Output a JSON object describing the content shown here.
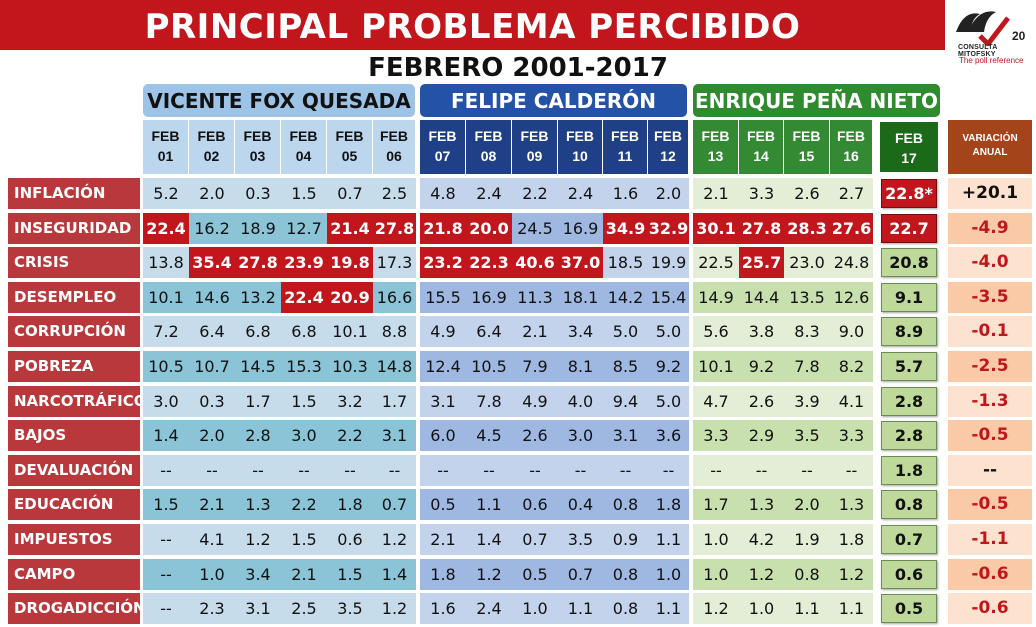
{
  "title": "PRINCIPAL PROBLEMA PERCIBIDO",
  "subtitle": "FEBRERO 2001-2017",
  "logo": {
    "brand": "CONSULTA MITOFSKY",
    "tagline": "The poll reference",
    "badge": "20"
  },
  "periods": [
    {
      "name": "VICENTE FOX QUESADA"
    },
    {
      "name": "FELIPE CALDERÓN"
    },
    {
      "name": "ENRIQUE PEÑA NIETO"
    }
  ],
  "variation_header": [
    "VARIACIÓN",
    "ANUAL"
  ],
  "colors": {
    "title_red": "#c0161c",
    "fox_blue": "#9dc3e6",
    "calderon_blue": "#2452a6",
    "epn_green": "#2e8b2e",
    "highlight_red": "#c0161c",
    "variation_header": "#a3441a",
    "variation_negative": "#c0161c"
  },
  "chart_data": {
    "type": "table",
    "title": "PRINCIPAL PROBLEMA PERCIBIDO",
    "subtitle": "FEBRERO 2001-2017",
    "columns": [
      {
        "month": "FEB",
        "year": "01",
        "period": 0
      },
      {
        "month": "FEB",
        "year": "02",
        "period": 0
      },
      {
        "month": "FEB",
        "year": "03",
        "period": 0
      },
      {
        "month": "FEB",
        "year": "04",
        "period": 0
      },
      {
        "month": "FEB",
        "year": "05",
        "period": 0
      },
      {
        "month": "FEB",
        "year": "06",
        "period": 0
      },
      {
        "month": "FEB",
        "year": "07",
        "period": 1
      },
      {
        "month": "FEB",
        "year": "08",
        "period": 1
      },
      {
        "month": "FEB",
        "year": "09",
        "period": 1
      },
      {
        "month": "FEB",
        "year": "10",
        "period": 1
      },
      {
        "month": "FEB",
        "year": "11",
        "period": 1
      },
      {
        "month": "FEB",
        "year": "12",
        "period": 1
      },
      {
        "month": "FEB",
        "year": "13",
        "period": 2
      },
      {
        "month": "FEB",
        "year": "14",
        "period": 2
      },
      {
        "month": "FEB",
        "year": "15",
        "period": 2
      },
      {
        "month": "FEB",
        "year": "16",
        "period": 2
      },
      {
        "month": "FEB",
        "year": "17",
        "period": 2
      }
    ],
    "rows": [
      {
        "label": "INFLACIÓN",
        "values": [
          "5.2",
          "2.0",
          "0.3",
          "1.5",
          "0.7",
          "2.5",
          "4.8",
          "2.4",
          "2.2",
          "2.4",
          "1.6",
          "2.0",
          "2.1",
          "3.3",
          "2.6",
          "2.7",
          "22.8*"
        ],
        "highlight": [
          16
        ],
        "variation": "+20.1"
      },
      {
        "label": "INSEGURIDAD",
        "values": [
          "22.4",
          "16.2",
          "18.9",
          "12.7",
          "21.4",
          "27.8",
          "21.8",
          "20.0",
          "24.5",
          "16.9",
          "34.9",
          "32.9",
          "30.1",
          "27.8",
          "28.3",
          "27.6",
          "22.7"
        ],
        "highlight": [
          0,
          4,
          5,
          6,
          7,
          10,
          11,
          12,
          13,
          14,
          15,
          16
        ],
        "variation": "-4.9"
      },
      {
        "label": "CRISIS",
        "values": [
          "13.8",
          "35.4",
          "27.8",
          "23.9",
          "19.8",
          "17.3",
          "23.2",
          "22.3",
          "40.6",
          "37.0",
          "18.5",
          "19.9",
          "22.5",
          "25.7",
          "23.0",
          "24.8",
          "20.8"
        ],
        "highlight": [
          1,
          2,
          3,
          4,
          6,
          7,
          8,
          9,
          13
        ],
        "variation": "-4.0"
      },
      {
        "label": "DESEMPLEO",
        "values": [
          "10.1",
          "14.6",
          "13.2",
          "22.4",
          "20.9",
          "16.6",
          "15.5",
          "16.9",
          "11.3",
          "18.1",
          "14.2",
          "15.4",
          "14.9",
          "14.4",
          "13.5",
          "12.6",
          "9.1"
        ],
        "highlight": [
          3,
          4
        ],
        "variation": "-3.5"
      },
      {
        "label": "CORRUPCIÓN",
        "values": [
          "7.2",
          "6.4",
          "6.8",
          "6.8",
          "10.1",
          "8.8",
          "4.9",
          "6.4",
          "2.1",
          "3.4",
          "5.0",
          "5.0",
          "5.6",
          "3.8",
          "8.3",
          "9.0",
          "8.9"
        ],
        "highlight": [],
        "variation": "-0.1"
      },
      {
        "label": "POBREZA",
        "values": [
          "10.5",
          "10.7",
          "14.5",
          "15.3",
          "10.3",
          "14.8",
          "12.4",
          "10.5",
          "7.9",
          "8.1",
          "8.5",
          "9.2",
          "10.1",
          "9.2",
          "7.8",
          "8.2",
          "5.7"
        ],
        "highlight": [],
        "variation": "-2.5"
      },
      {
        "label": "NARCOTRÁFICO",
        "values": [
          "3.0",
          "0.3",
          "1.7",
          "1.5",
          "3.2",
          "1.7",
          "3.1",
          "7.8",
          "4.9",
          "4.0",
          "9.4",
          "5.0",
          "4.7",
          "2.6",
          "3.9",
          "4.1",
          "2.8"
        ],
        "highlight": [],
        "variation": "-1.3"
      },
      {
        "label": "BAJOS SALARIOS",
        "values": [
          "1.4",
          "2.0",
          "2.8",
          "3.0",
          "2.2",
          "3.1",
          "6.0",
          "4.5",
          "2.6",
          "3.0",
          "3.1",
          "3.6",
          "3.3",
          "2.9",
          "3.5",
          "3.3",
          "2.8"
        ],
        "highlight": [],
        "variation": "-0.5"
      },
      {
        "label": "DEVALUACIÓN",
        "values": [
          "--",
          "--",
          "--",
          "--",
          "--",
          "--",
          "--",
          "--",
          "--",
          "--",
          "--",
          "--",
          "--",
          "--",
          "--",
          "--",
          "1.8"
        ],
        "highlight": [],
        "variation": "--"
      },
      {
        "label": "EDUCACIÓN",
        "values": [
          "1.5",
          "2.1",
          "1.3",
          "2.2",
          "1.8",
          "0.7",
          "0.5",
          "1.1",
          "0.6",
          "0.4",
          "0.8",
          "1.8",
          "1.7",
          "1.3",
          "2.0",
          "1.3",
          "0.8"
        ],
        "highlight": [],
        "variation": "-0.5"
      },
      {
        "label": "IMPUESTOS",
        "values": [
          "--",
          "4.1",
          "1.2",
          "1.5",
          "0.6",
          "1.2",
          "2.1",
          "1.4",
          "0.7",
          "3.5",
          "0.9",
          "1.1",
          "1.0",
          "4.2",
          "1.9",
          "1.8",
          "0.7"
        ],
        "highlight": [],
        "variation": "-1.1"
      },
      {
        "label": "CAMPO",
        "values": [
          "--",
          "1.0",
          "3.4",
          "2.1",
          "1.5",
          "1.4",
          "1.8",
          "1.2",
          "0.5",
          "0.7",
          "0.8",
          "1.0",
          "1.0",
          "1.2",
          "0.8",
          "1.2",
          "0.6"
        ],
        "highlight": [],
        "variation": "-0.6"
      },
      {
        "label": "DROGADICCIÓN",
        "values": [
          "--",
          "2.3",
          "3.1",
          "2.5",
          "3.5",
          "1.2",
          "1.6",
          "2.4",
          "1.0",
          "1.1",
          "0.8",
          "1.1",
          "1.2",
          "1.0",
          "1.1",
          "1.1",
          "0.5"
        ],
        "highlight": [],
        "variation": "-0.6"
      }
    ]
  }
}
